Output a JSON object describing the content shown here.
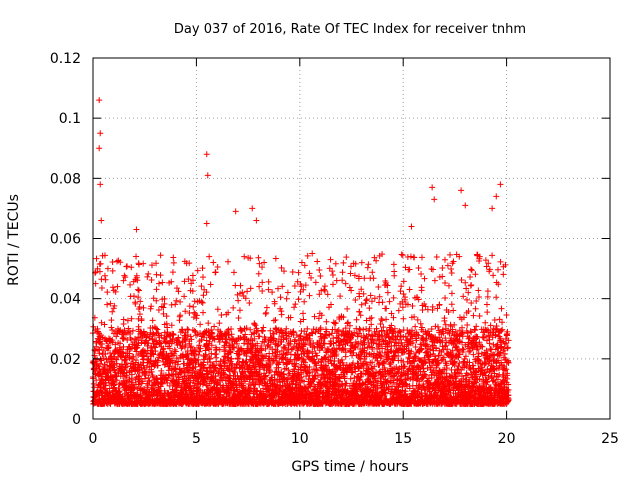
{
  "chart_data": {
    "type": "scatter",
    "title": "Day 037 of 2016, Rate Of TEC Index for receiver tnhm",
    "xlabel": "GPS time / hours",
    "ylabel": "ROTI / TECUs",
    "xlim": [
      0,
      25
    ],
    "ylim": [
      0,
      0.12
    ],
    "x_ticks": [
      0,
      5,
      10,
      15,
      20,
      25
    ],
    "x_tick_labels": [
      "0",
      "5",
      "10",
      "15",
      "20",
      "25"
    ],
    "y_ticks": [
      0,
      0.02,
      0.04,
      0.06,
      0.08,
      0.1,
      0.12
    ],
    "y_tick_labels": [
      "0",
      "0.02",
      "0.04",
      "0.06",
      "0.08",
      "0.1",
      "0.12"
    ],
    "grid": true,
    "marker": "+",
    "color": "#ff0000",
    "series": [
      {
        "name": "ROTI",
        "x_range": [
          0,
          20.1
        ],
        "baseline_range": [
          0.005,
          0.03
        ],
        "notable_points": [
          {
            "x": 0.3,
            "y": 0.106
          },
          {
            "x": 0.35,
            "y": 0.095
          },
          {
            "x": 0.3,
            "y": 0.09
          },
          {
            "x": 0.35,
            "y": 0.078
          },
          {
            "x": 0.4,
            "y": 0.066
          },
          {
            "x": 2.1,
            "y": 0.063
          },
          {
            "x": 5.5,
            "y": 0.088
          },
          {
            "x": 5.55,
            "y": 0.081
          },
          {
            "x": 5.5,
            "y": 0.065
          },
          {
            "x": 6.9,
            "y": 0.069
          },
          {
            "x": 7.7,
            "y": 0.07
          },
          {
            "x": 7.9,
            "y": 0.066
          },
          {
            "x": 10.6,
            "y": 0.055
          },
          {
            "x": 13.0,
            "y": 0.052
          },
          {
            "x": 15.4,
            "y": 0.064
          },
          {
            "x": 16.4,
            "y": 0.077
          },
          {
            "x": 16.5,
            "y": 0.073
          },
          {
            "x": 17.8,
            "y": 0.076
          },
          {
            "x": 18.0,
            "y": 0.071
          },
          {
            "x": 19.7,
            "y": 0.078
          },
          {
            "x": 19.5,
            "y": 0.074
          },
          {
            "x": 19.3,
            "y": 0.07
          }
        ]
      }
    ]
  }
}
